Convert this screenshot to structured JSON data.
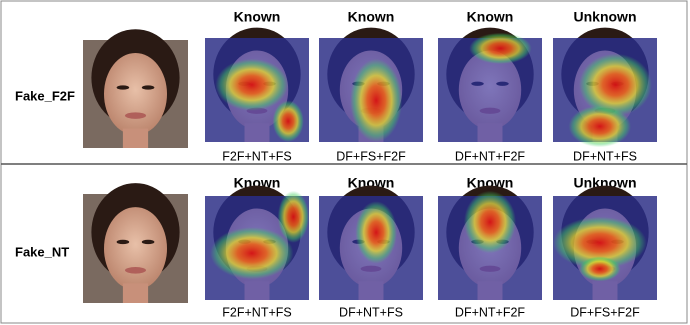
{
  "rows": [
    {
      "label": "Fake_F2F",
      "columns": [
        {
          "header": "Known",
          "caption": "F2F+NT+FS"
        },
        {
          "header": "Known",
          "caption": "DF+FS+F2F"
        },
        {
          "header": "Known",
          "caption": "DF+NT+F2F"
        },
        {
          "header": "Unknown",
          "caption": "DF+NT+FS"
        }
      ]
    },
    {
      "label": "Fake_NT",
      "columns": [
        {
          "header": "Known",
          "caption": "F2F+NT+FS"
        },
        {
          "header": "Known",
          "caption": "DF+NT+FS"
        },
        {
          "header": "Known",
          "caption": "DF+NT+F2F"
        },
        {
          "header": "Unknown",
          "caption": "DF+FS+F2F"
        }
      ]
    }
  ]
}
